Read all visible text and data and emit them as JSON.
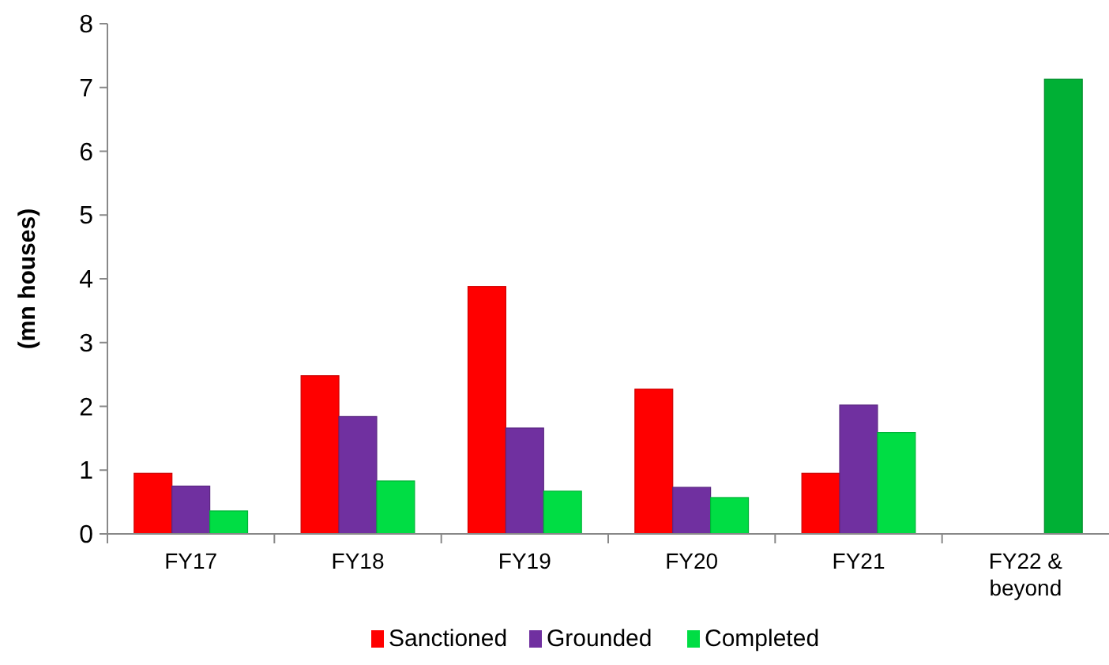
{
  "chart_data": {
    "type": "bar",
    "ylabel": "(mn houses)",
    "categories": [
      "FY17",
      "FY18",
      "FY19",
      "FY20",
      "FY21",
      "FY22 & beyond"
    ],
    "series": [
      {
        "name": "Sanctioned",
        "color": "#ff0000",
        "values": [
          0.95,
          2.48,
          3.88,
          2.27,
          0.95,
          null
        ]
      },
      {
        "name": "Grounded",
        "color": "#7030a0",
        "values": [
          0.75,
          1.84,
          1.66,
          0.73,
          2.02,
          null
        ]
      },
      {
        "name": "Completed",
        "color": "#00dd44",
        "colors": [
          "#00dd44",
          "#00dd44",
          "#00dd44",
          "#00dd44",
          "#00dd44",
          "#00b035"
        ],
        "values": [
          0.36,
          0.83,
          0.67,
          0.57,
          1.59,
          7.13
        ]
      }
    ],
    "ylim": [
      0,
      8
    ],
    "yticks": [
      0,
      1,
      2,
      3,
      4,
      5,
      6,
      7,
      8
    ],
    "grid": false,
    "legend": "bottom"
  }
}
